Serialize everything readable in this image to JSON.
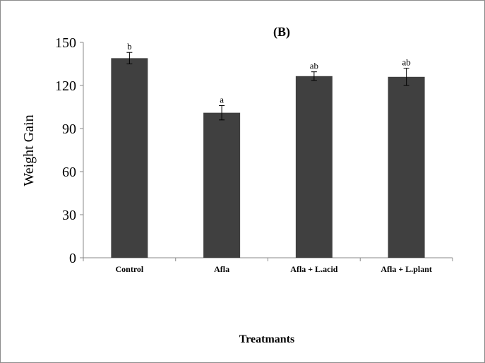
{
  "chart_data": {
    "type": "bar",
    "title": "(B)",
    "xlabel": "Treatmants",
    "ylabel": "Weight Gain",
    "ylim": [
      0,
      150
    ],
    "yticks": [
      0,
      30,
      60,
      90,
      120,
      150
    ],
    "categories": [
      "Control",
      "Afla",
      "Afla + L.acid",
      "Afla + L.plant"
    ],
    "values": [
      139,
      101,
      126.5,
      126
    ],
    "errors": [
      4,
      5,
      3,
      6
    ],
    "significance_letters": [
      "b",
      "a",
      "ab",
      "ab"
    ],
    "bar_color": "#404040",
    "grid": false,
    "legend": "none"
  }
}
